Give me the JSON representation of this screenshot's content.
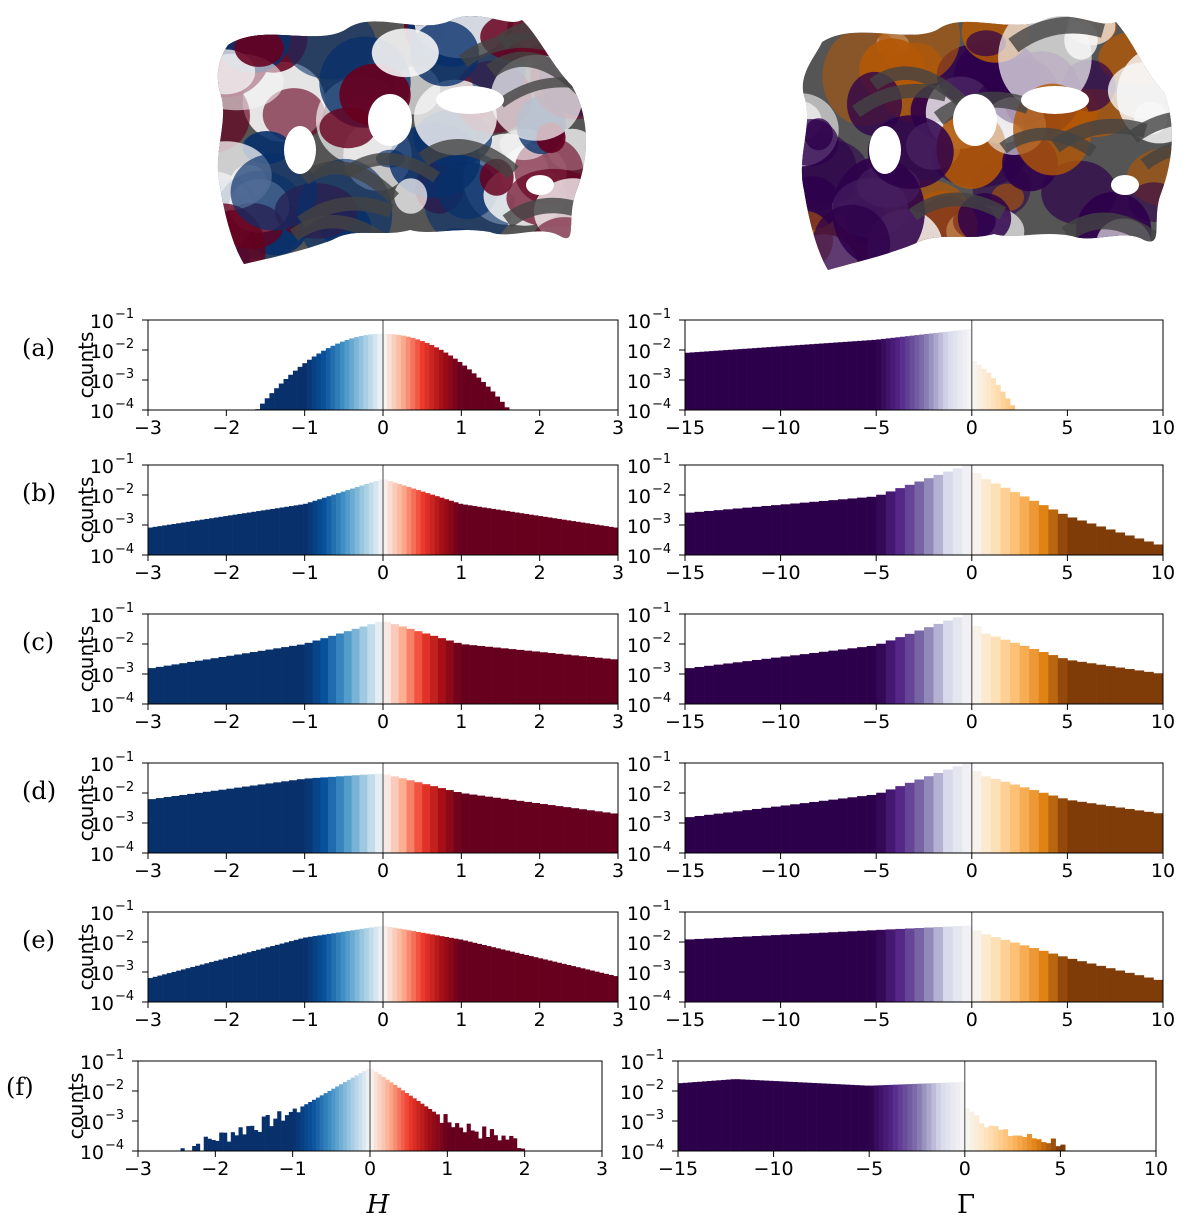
{
  "figure": {
    "panel_labels": [
      "(a)",
      "(b)",
      "(c)",
      "(d)",
      "(e)",
      "(f)"
    ],
    "ylabel": "counts",
    "xlabel_left": "H",
    "xlabel_right": "Γ",
    "yticks": [
      {
        "value": 0.1,
        "label": "10",
        "exp": "−1"
      },
      {
        "value": 0.01,
        "label": "10",
        "exp": "−2"
      },
      {
        "value": 0.001,
        "label": "10",
        "exp": "−3"
      },
      {
        "value": 0.0001,
        "label": "10",
        "exp": "−4"
      }
    ],
    "left_xticks": [
      {
        "value": -3,
        "label": "−3"
      },
      {
        "value": -2,
        "label": "−2"
      },
      {
        "value": -1,
        "label": "−1"
      },
      {
        "value": 0,
        "label": "0"
      },
      {
        "value": 1,
        "label": "1"
      },
      {
        "value": 2,
        "label": "2"
      },
      {
        "value": 3,
        "label": "3"
      }
    ],
    "right_xticks": [
      {
        "value": -15,
        "label": "−15"
      },
      {
        "value": -10,
        "label": "−10"
      },
      {
        "value": -5,
        "label": "−5"
      },
      {
        "value": 0,
        "label": "0"
      },
      {
        "value": 5,
        "label": "5"
      },
      {
        "value": 10,
        "label": "10"
      }
    ],
    "left_colormap": "RdBu_r",
    "right_colormap": "PuOr_r",
    "renders": [
      {
        "name": "mean-curvature-surface",
        "colors": [
          "#08306b",
          "#f7f7f7",
          "#67001f",
          "#555555"
        ]
      },
      {
        "name": "gaussian-curvature-surface",
        "colors": [
          "#2d004b",
          "#f7f7f7",
          "#b35806",
          "#555555"
        ]
      }
    ]
  },
  "chart_data": [
    {
      "type": "bar",
      "panel": "(a)",
      "xlabel": "",
      "ylabel": "counts",
      "xlim": [
        -3,
        3
      ],
      "ylim": [
        0.0001,
        0.1
      ],
      "yscale": "log",
      "bin_width": 0.06,
      "distribution": "gaussian",
      "x_range": [
        -1.75,
        1.7
      ],
      "peak": {
        "x": 0,
        "y": 0.035
      },
      "value_at": [
        {
          "x": -1.0,
          "y": 0.004
        },
        {
          "x": 1.0,
          "y": 0.004
        },
        {
          "x": -1.6,
          "y": 0.0001
        },
        {
          "x": 1.65,
          "y": 0.0001
        }
      ]
    },
    {
      "type": "bar",
      "panel": "(a)",
      "xlabel": "",
      "ylabel": "counts",
      "xlim": [
        -15,
        10
      ],
      "ylim": [
        0.0001,
        0.1
      ],
      "yscale": "log",
      "bin_width": 0.25,
      "x_range": [
        -15,
        2.4
      ],
      "points": [
        {
          "x": -15,
          "y": 0.008
        },
        {
          "x": -5,
          "y": 0.022
        },
        {
          "x": -0.1,
          "y": 0.05
        },
        {
          "x": 0,
          "y": 0.005
        },
        {
          "x": 1,
          "y": 0.0015
        },
        {
          "x": 2.3,
          "y": 0.0001
        }
      ]
    },
    {
      "type": "bar",
      "panel": "(b)",
      "xlabel": "",
      "ylabel": "counts",
      "xlim": [
        -3,
        3
      ],
      "ylim": [
        0.0001,
        0.1
      ],
      "yscale": "log",
      "bin_width": 0.06,
      "x_range": [
        -3,
        3
      ],
      "points": [
        {
          "x": -3,
          "y": 0.0008
        },
        {
          "x": -1,
          "y": 0.005
        },
        {
          "x": 0,
          "y": 0.035
        },
        {
          "x": 1,
          "y": 0.005
        },
        {
          "x": 3,
          "y": 0.0008
        }
      ]
    },
    {
      "type": "bar",
      "panel": "(b)",
      "xlabel": "",
      "ylabel": "counts",
      "xlim": [
        -15,
        10
      ],
      "ylim": [
        0.0001,
        0.1
      ],
      "yscale": "log",
      "bin_width": 0.5,
      "x_range": [
        -15,
        10
      ],
      "points": [
        {
          "x": -15,
          "y": 0.0025
        },
        {
          "x": -5,
          "y": 0.009
        },
        {
          "x": -0.25,
          "y": 0.1
        },
        {
          "x": 0.5,
          "y": 0.04
        },
        {
          "x": 5,
          "y": 0.002
        },
        {
          "x": 10,
          "y": 0.0002
        }
      ]
    },
    {
      "type": "bar",
      "panel": "(c)",
      "xlabel": "",
      "ylabel": "counts",
      "xlim": [
        -3,
        3
      ],
      "ylim": [
        0.0001,
        0.1
      ],
      "yscale": "log",
      "bin_width": 0.1,
      "x_range": [
        -3,
        3
      ],
      "points": [
        {
          "x": -3,
          "y": 0.0015
        },
        {
          "x": -1,
          "y": 0.01
        },
        {
          "x": 0,
          "y": 0.06
        },
        {
          "x": 1,
          "y": 0.01
        },
        {
          "x": 3,
          "y": 0.003
        }
      ]
    },
    {
      "type": "bar",
      "panel": "(c)",
      "xlabel": "",
      "ylabel": "counts",
      "xlim": [
        -15,
        10
      ],
      "ylim": [
        0.0001,
        0.1
      ],
      "yscale": "log",
      "bin_width": 0.5,
      "x_range": [
        -15,
        10
      ],
      "points": [
        {
          "x": -15,
          "y": 0.0015
        },
        {
          "x": -5,
          "y": 0.009
        },
        {
          "x": -0.25,
          "y": 0.1
        },
        {
          "x": 0.5,
          "y": 0.025
        },
        {
          "x": 5,
          "y": 0.003
        },
        {
          "x": 10,
          "y": 0.001
        }
      ]
    },
    {
      "type": "bar",
      "panel": "(d)",
      "xlabel": "",
      "ylabel": "counts",
      "xlim": [
        -3,
        3
      ],
      "ylim": [
        0.0001,
        0.1
      ],
      "yscale": "log",
      "bin_width": 0.1,
      "x_range": [
        -3,
        3
      ],
      "points": [
        {
          "x": -3,
          "y": 0.006
        },
        {
          "x": -1,
          "y": 0.03
        },
        {
          "x": 0,
          "y": 0.045
        },
        {
          "x": 1,
          "y": 0.01
        },
        {
          "x": 3,
          "y": 0.002
        }
      ]
    },
    {
      "type": "bar",
      "panel": "(d)",
      "xlabel": "",
      "ylabel": "counts",
      "xlim": [
        -15,
        10
      ],
      "ylim": [
        0.0001,
        0.1
      ],
      "yscale": "log",
      "bin_width": 0.5,
      "x_range": [
        -15,
        10
      ],
      "points": [
        {
          "x": -15,
          "y": 0.0015
        },
        {
          "x": -5,
          "y": 0.009
        },
        {
          "x": -0.25,
          "y": 0.1
        },
        {
          "x": 0.5,
          "y": 0.04
        },
        {
          "x": 5,
          "y": 0.006
        },
        {
          "x": 10,
          "y": 0.002
        }
      ]
    },
    {
      "type": "bar",
      "panel": "(e)",
      "xlabel": "",
      "ylabel": "counts",
      "xlim": [
        -3,
        3
      ],
      "ylim": [
        0.0001,
        0.1
      ],
      "yscale": "log",
      "bin_width": 0.06,
      "x_range": [
        -3,
        3
      ],
      "points": [
        {
          "x": -3,
          "y": 0.0006
        },
        {
          "x": -1,
          "y": 0.014
        },
        {
          "x": 0,
          "y": 0.035
        },
        {
          "x": 1,
          "y": 0.012
        },
        {
          "x": 3,
          "y": 0.0007
        }
      ]
    },
    {
      "type": "bar",
      "panel": "(e)",
      "xlabel": "",
      "ylabel": "counts",
      "xlim": [
        -15,
        10
      ],
      "ylim": [
        0.0001,
        0.1
      ],
      "yscale": "log",
      "bin_width": 0.5,
      "x_range": [
        -15,
        10
      ],
      "points": [
        {
          "x": -15,
          "y": 0.012
        },
        {
          "x": -5,
          "y": 0.025
        },
        {
          "x": -0.25,
          "y": 0.035
        },
        {
          "x": 0.5,
          "y": 0.02
        },
        {
          "x": 5,
          "y": 0.003
        },
        {
          "x": 10,
          "y": 0.0005
        }
      ]
    },
    {
      "type": "bar",
      "panel": "(f)",
      "xlabel": "H",
      "ylabel": "counts",
      "xlim": [
        -3,
        3
      ],
      "ylim": [
        0.0001,
        0.1
      ],
      "yscale": "log",
      "bin_width": 0.05,
      "x_range": [
        -2.5,
        2.0
      ],
      "points": [
        {
          "x": -2.5,
          "y": 0.0001
        },
        {
          "x": -1,
          "y": 0.002
        },
        {
          "x": 0,
          "y": 0.06
        },
        {
          "x": 1,
          "y": 0.001
        },
        {
          "x": 1.95,
          "y": 0.0002
        },
        {
          "x": 2.0,
          "y": 0.00015
        }
      ]
    },
    {
      "type": "bar",
      "panel": "(f)",
      "xlabel": "Γ",
      "ylabel": "counts",
      "xlim": [
        -15,
        10
      ],
      "ylim": [
        0.0001,
        0.1
      ],
      "yscale": "log",
      "bin_width": 0.25,
      "x_range": [
        -15,
        5.2
      ],
      "points": [
        {
          "x": -15,
          "y": 0.018
        },
        {
          "x": -12,
          "y": 0.025
        },
        {
          "x": -5,
          "y": 0.015
        },
        {
          "x": -0.1,
          "y": 0.02
        },
        {
          "x": 0,
          "y": 0.003
        },
        {
          "x": 2,
          "y": 0.0004
        },
        {
          "x": 5,
          "y": 0.0002
        }
      ]
    }
  ]
}
